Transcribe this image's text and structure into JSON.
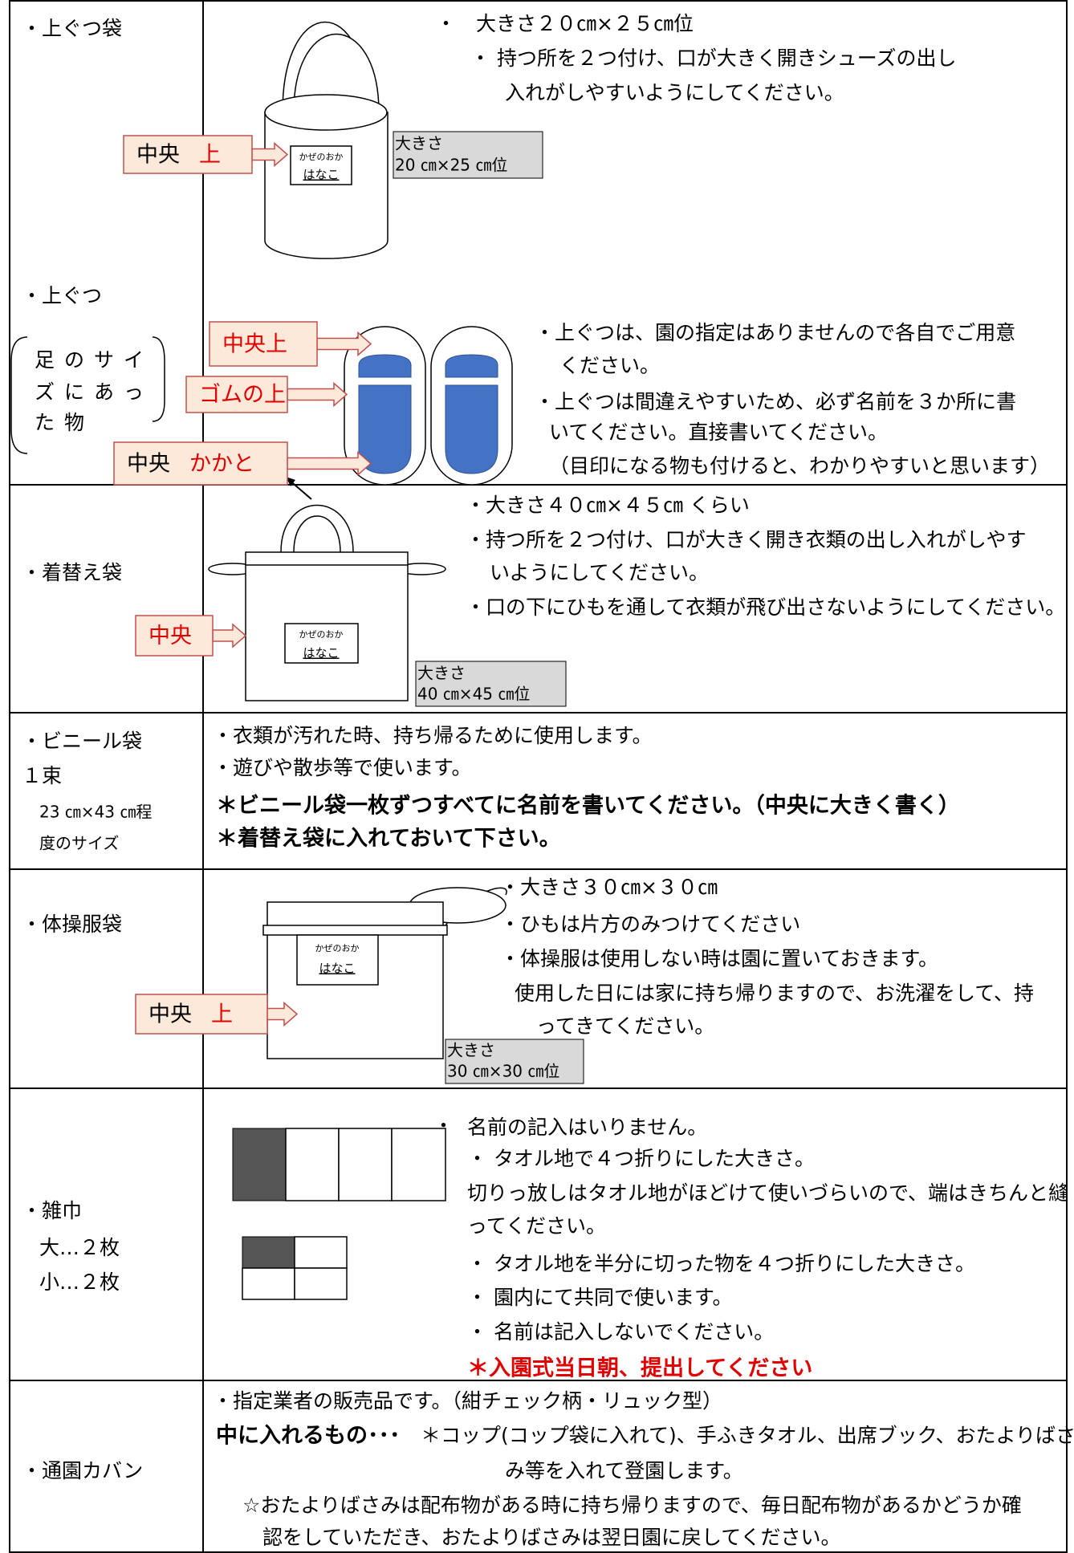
{
  "rows": [
    {
      "label": [
        "・上ぐつ袋"
      ],
      "lines": [
        "・　大きさ２０㎝×２５㎝位",
        "・ 持つ所を２つ付け、口が大きく開きシューズの出し",
        "入れがしやすいようにしてください。"
      ],
      "callouts": [
        [
          "中央",
          "上"
        ]
      ],
      "name_tag": [
        "かぜのおか",
        "はなこ"
      ],
      "size_box": [
        "大きさ",
        "20 ㎝×25 ㎝位"
      ]
    },
    {
      "label": [
        "・上ぐつ",
        "足のサイ",
        "ズにあっ",
        "た物"
      ],
      "lines": [
        "・上ぐつは、園の指定はありませんので各自でご用意",
        "ください。",
        "・上ぐつは間違えやすいため、必ず名前を３か所に書",
        "いてください。直接書いてください。",
        "（目印になる物も付けると、わかりやすいと思います）"
      ],
      "callouts": [
        [
          "中央上"
        ],
        [
          "ゴムの上"
        ],
        [
          "中央",
          "かかと"
        ]
      ]
    },
    {
      "label": [
        "・着替え袋"
      ],
      "lines": [
        "・大きさ４０㎝×４５㎝ くらい",
        "・持つ所を２つ付け、口が大きく開き衣類の出し入れがしやす",
        "いようにしてください。",
        "・口の下にひもを通して衣類が飛び出さないようにしてください。"
      ],
      "callouts": [
        [
          "中央"
        ]
      ],
      "name_tag": [
        "かぜのおか",
        "はなこ"
      ],
      "size_box": [
        "大きさ",
        "40 ㎝×45 ㎝位"
      ]
    },
    {
      "label": [
        "・ビニール袋",
        "１束",
        "23 ㎝×43 ㎝程",
        "度のサイズ"
      ],
      "lines": [
        "・衣類が汚れた時、持ち帰るために使用します。",
        "・遊びや散歩等で使います。",
        "＊ビニール袋一枚ずつすべてに名前を書いてください。（中央に大きく書く）",
        "＊着替え袋に入れておいて下さい。"
      ]
    },
    {
      "label": [
        "・体操服袋"
      ],
      "lines": [
        "・大きさ３０㎝×３０㎝",
        "・ひもは片方のみつけてください",
        "・体操服は使用しない時は園に置いておきます。",
        "使用した日には家に持ち帰りますので、お洗濯をして、持",
        "ってきてください。"
      ],
      "callouts": [
        [
          "中央",
          "上"
        ]
      ],
      "name_tag": [
        "かぜのおか",
        "はなこ"
      ],
      "size_box": [
        "大きさ",
        "30 ㎝×30 ㎝位"
      ]
    },
    {
      "label": [
        "・雑巾",
        "大…２枚",
        "小…２枚"
      ],
      "lines": [
        "・",
        "名前の記入はいりません。",
        "・ タオル地で４つ折りにした大きさ。",
        "切りっ放しはタオル地がほどけて使いづらいので、端はきちんと縫",
        "ってください。",
        "・ タオル地を半分に切った物を４つ折りにした大きさ。",
        "・ 園内にて共同で使います。",
        "・ 名前は記入しないでください。",
        "＊入園式当日朝、提出してください"
      ]
    },
    {
      "label": [
        "・通園カバン"
      ],
      "lines": [
        "・指定業者の販売品です。（紺チェック柄・リュック型）",
        "中に入れるもの･･･",
        "＊コップ(コップ袋に入れて)、手ふきタオル、出席ブック、おたよりばさ",
        "み等を入れて登園します。",
        "☆おたよりばさみは配布物がある時に持ち帰りますので、毎日配布物があるかどうか確",
        "認をしていただき、おたよりばさみは翌日園に戻してください。"
      ]
    }
  ]
}
